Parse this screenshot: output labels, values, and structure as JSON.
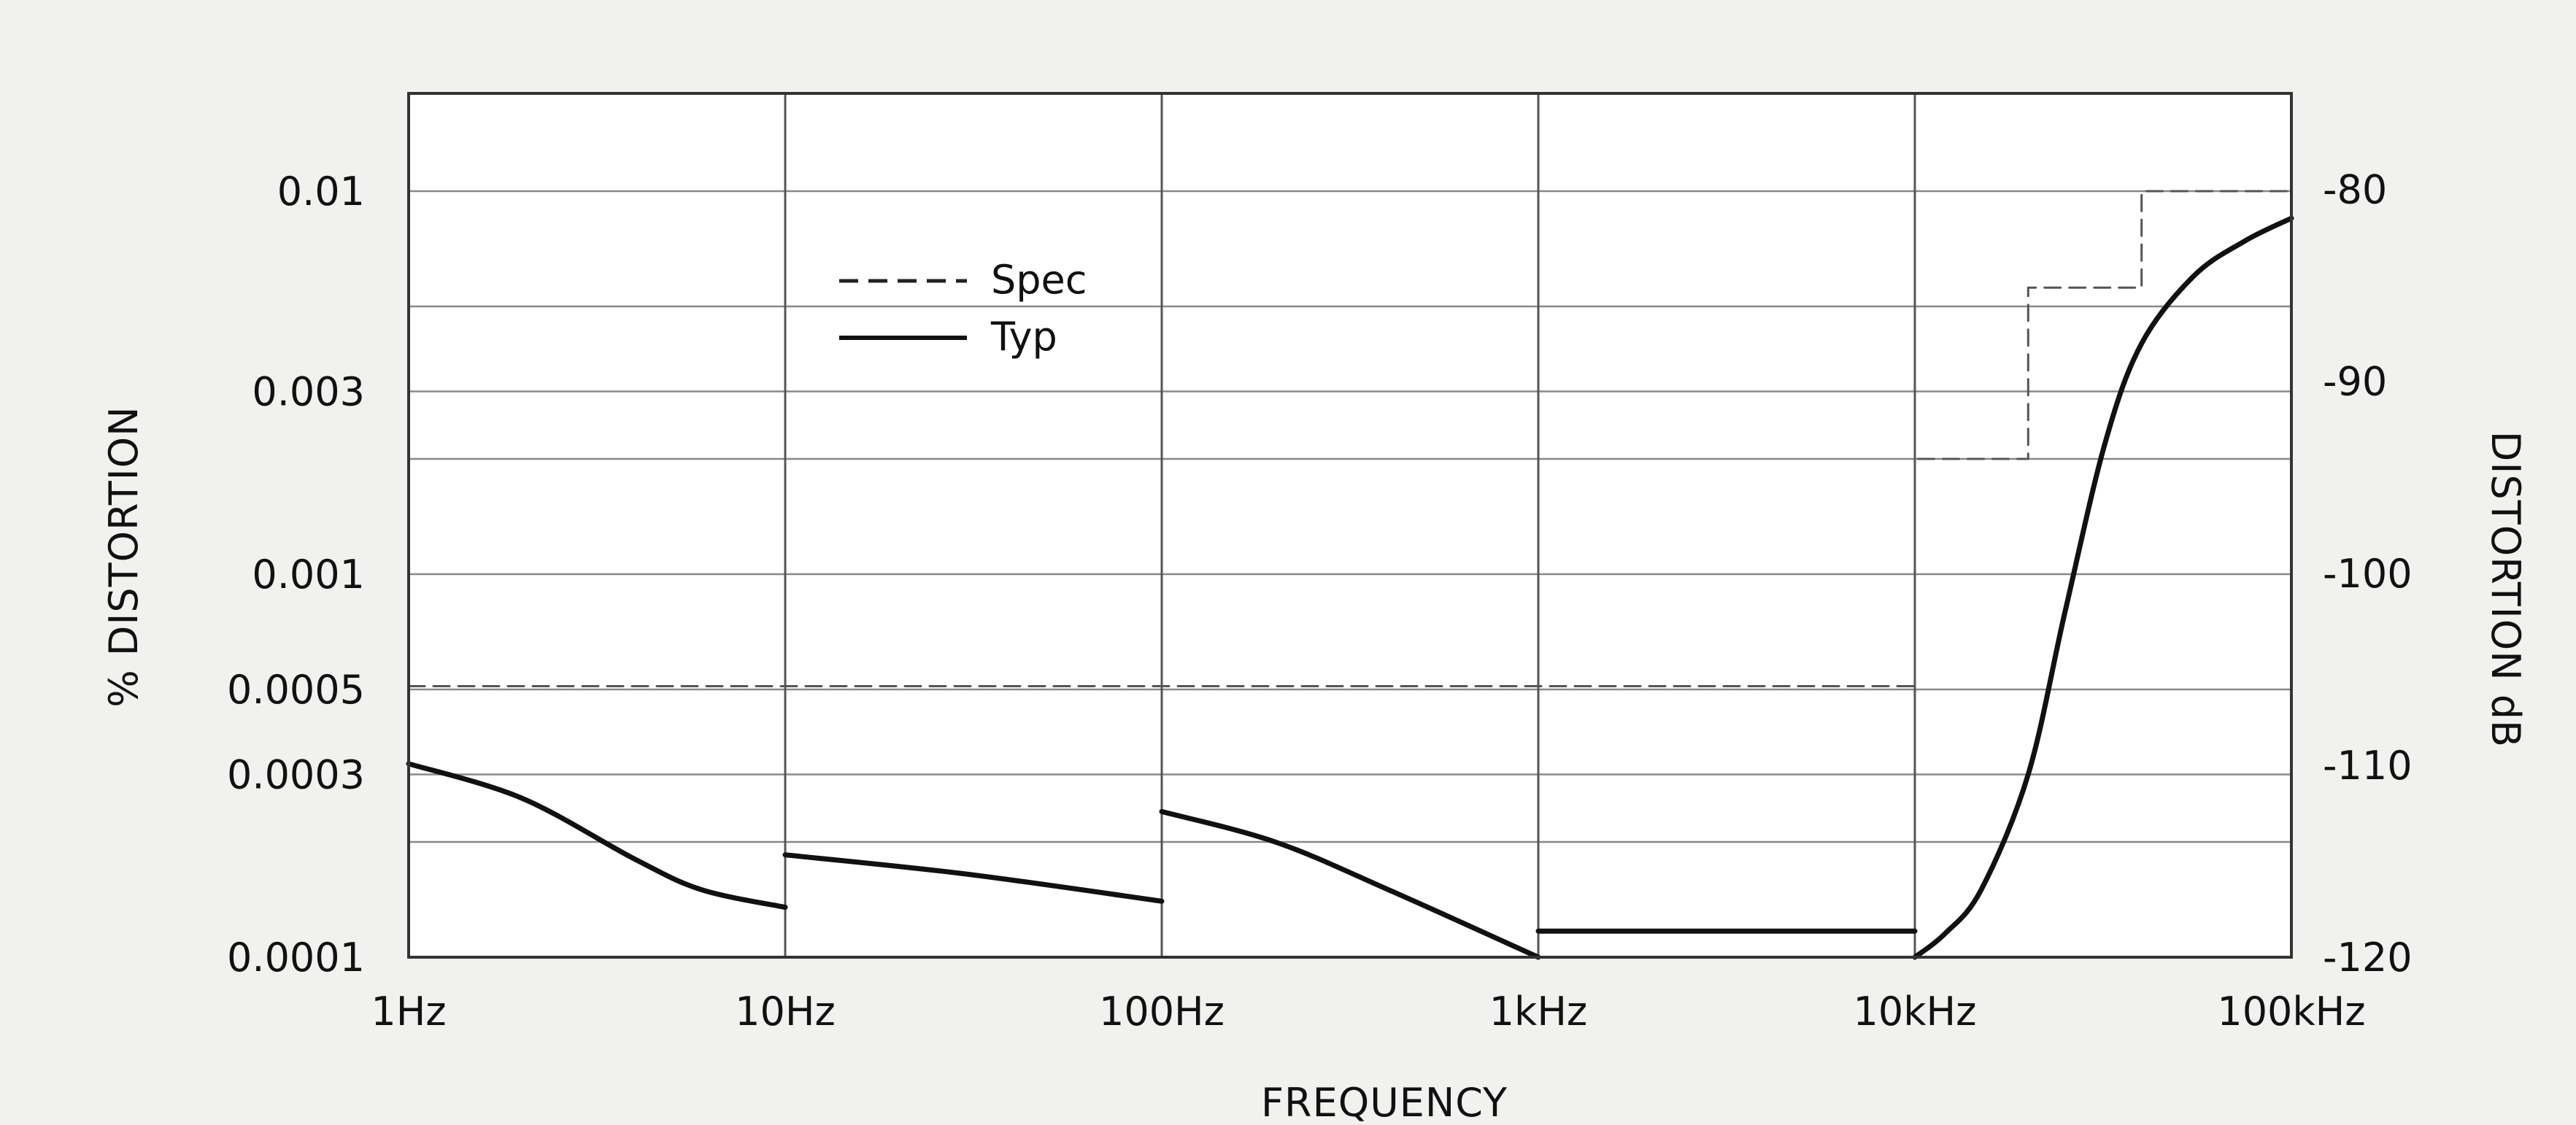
{
  "chart_data": {
    "type": "line",
    "xlabel": "FREQUENCY",
    "ylabel": "% DISTORTION",
    "y2label": "DISTORTION dB",
    "x_scale": "log",
    "y_scale": "log",
    "xlim": [
      "1Hz",
      "100kHz"
    ],
    "xlim_hz": [
      1,
      100000
    ],
    "ylim": [
      0.0001,
      0.018
    ],
    "y2lim": [
      -120,
      -75
    ],
    "grid": true,
    "legend_placement": "top-left",
    "x_ticks": [
      {
        "label": "1Hz",
        "value": 1
      },
      {
        "label": "10Hz",
        "value": 10
      },
      {
        "label": "100Hz",
        "value": 100
      },
      {
        "label": "1kHz",
        "value": 1000
      },
      {
        "label": "10kHz",
        "value": 10000
      },
      {
        "label": "100kHz",
        "value": 100000
      }
    ],
    "y_ticks": [
      {
        "label": "0.01",
        "value": 0.01
      },
      {
        "label": "0.003",
        "value": 0.003
      },
      {
        "label": "0.001",
        "value": 0.001
      },
      {
        "label": "0.0005",
        "value": 0.0005
      },
      {
        "label": "0.0003",
        "value": 0.0003
      },
      {
        "label": "0.0001",
        "value": 0.0001
      }
    ],
    "y_gridlines": [
      0.01,
      0.005,
      0.003,
      0.002,
      0.001,
      0.0005,
      0.0003,
      0.0002,
      0.0001
    ],
    "y2_ticks": [
      {
        "label": "-80",
        "value": -80
      },
      {
        "label": "-90",
        "value": -90
      },
      {
        "label": "-100",
        "value": -100
      },
      {
        "label": "-110",
        "value": -110
      },
      {
        "label": "-120",
        "value": -120
      }
    ],
    "series": [
      {
        "name": "Spec",
        "style": "dashed",
        "color": "#555555",
        "segments": [
          [
            [
              1,
              0.00051
            ],
            [
              10000,
              0.00051
            ],
            [
              10000,
              0.002
            ],
            [
              20000,
              0.002
            ],
            [
              20000,
              0.0056
            ],
            [
              40000,
              0.0056
            ],
            [
              40000,
              0.01
            ],
            [
              100000,
              0.01
            ]
          ]
        ]
      },
      {
        "name": "Typ",
        "style": "solid",
        "color": "#111111",
        "segments": [
          [
            [
              1,
              0.00032
            ],
            [
              2,
              0.00026
            ],
            [
              4,
              0.00018
            ],
            [
              6,
              0.00015
            ],
            [
              10,
              0.000135
            ]
          ],
          [
            [
              10,
              0.000185
            ],
            [
              30,
              0.000165
            ],
            [
              100,
              0.00014
            ]
          ],
          [
            [
              100,
              0.00024
            ],
            [
              200,
              0.0002
            ],
            [
              400,
              0.00015
            ],
            [
              1000,
              0.0001
            ]
          ],
          [
            [
              1000,
              0.000117
            ],
            [
              10000,
              0.000117
            ]
          ],
          [
            [
              10000,
              0.0001
            ],
            [
              12000,
              0.000115
            ],
            [
              15000,
              0.00015
            ],
            [
              20000,
              0.0003
            ],
            [
              25000,
              0.00079
            ],
            [
              32000,
              0.0022
            ],
            [
              40000,
              0.004
            ],
            [
              55000,
              0.006
            ],
            [
              75000,
              0.0074
            ],
            [
              100000,
              0.0085
            ]
          ]
        ]
      }
    ]
  }
}
